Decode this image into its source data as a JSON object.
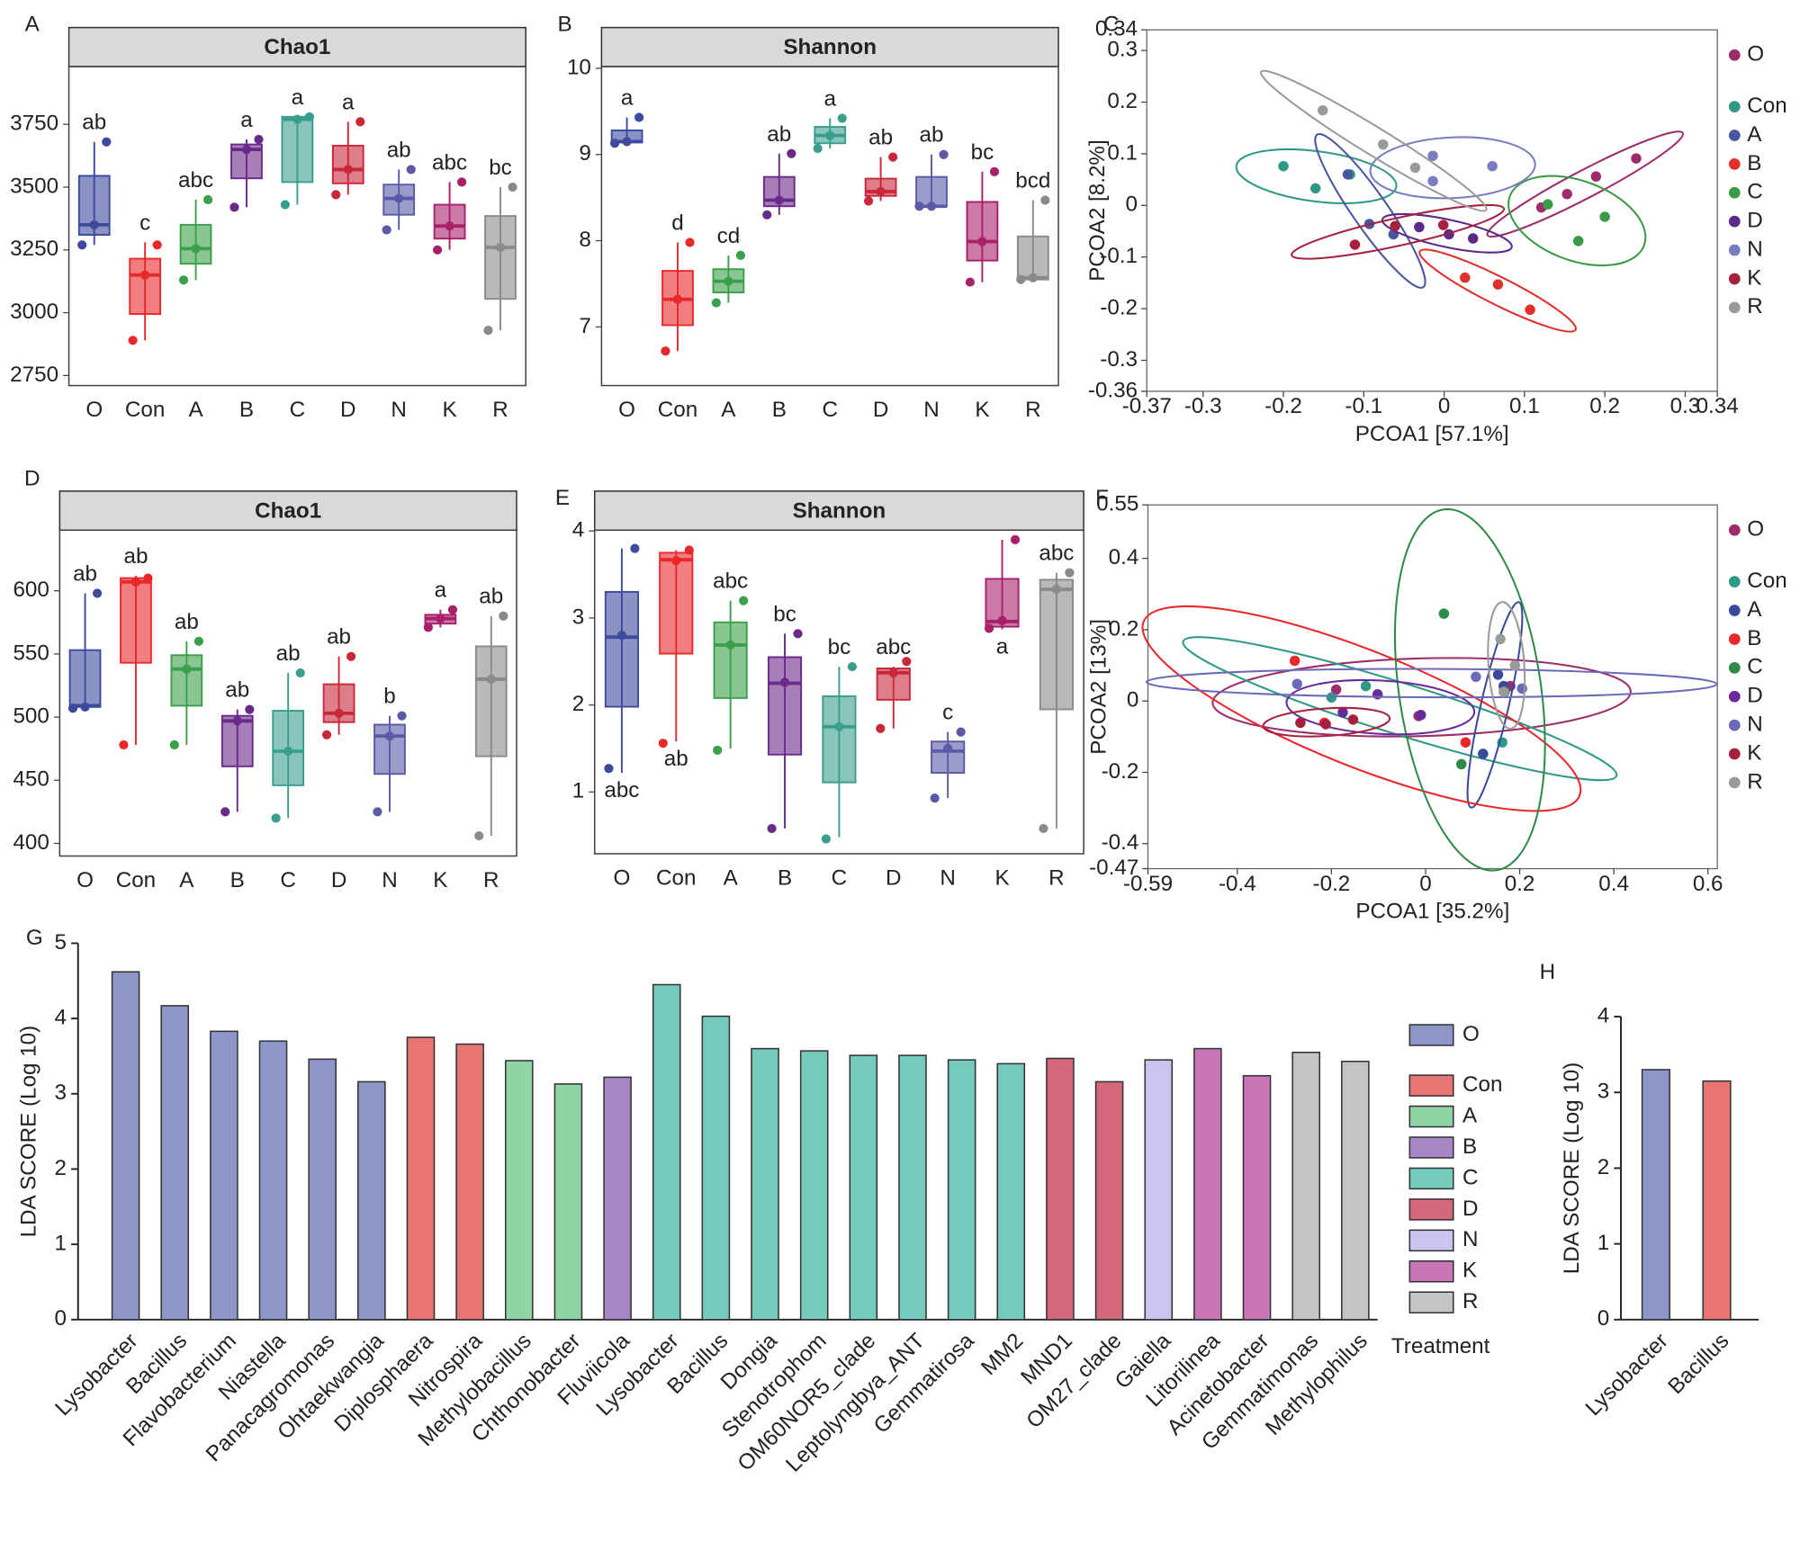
{
  "chart_data": [
    {
      "type": "box",
      "panel": "A",
      "title": "Chao1",
      "categories": [
        "O",
        "Con",
        "A",
        "B",
        "C",
        "D",
        "N",
        "K",
        "R"
      ],
      "colors": [
        "#3d4a9e",
        "#e8282b",
        "#3aa04a",
        "#6a2a8a",
        "#3a9e8e",
        "#c8283a",
        "#5a5aa8",
        "#a8206a",
        "#8a8a8a"
      ],
      "ylim": [
        2710,
        3980
      ],
      "yticks": [
        2750,
        3000,
        3250,
        3500,
        3750
      ],
      "boxes": [
        {
          "min": 3270,
          "q1": 3310,
          "median": 3350,
          "q3": 3545,
          "max": 3680,
          "points": [
            3270,
            3350,
            3680
          ],
          "label": "ab"
        },
        {
          "min": 2890,
          "q1": 2995,
          "median": 3150,
          "q3": 3215,
          "max": 3280,
          "points": [
            2890,
            3150,
            3270
          ],
          "label": "c"
        },
        {
          "min": 3130,
          "q1": 3195,
          "median": 3255,
          "q3": 3350,
          "max": 3450,
          "points": [
            3130,
            3255,
            3450
          ],
          "label": "abc"
        },
        {
          "min": 3420,
          "q1": 3535,
          "median": 3650,
          "q3": 3670,
          "max": 3690,
          "points": [
            3420,
            3650,
            3690
          ],
          "label": "a"
        },
        {
          "min": 3430,
          "q1": 3520,
          "median": 3770,
          "q3": 3780,
          "max": 3780,
          "points": [
            3430,
            3770,
            3780
          ],
          "label": "a"
        },
        {
          "min": 3470,
          "q1": 3515,
          "median": 3570,
          "q3": 3665,
          "max": 3760,
          "points": [
            3470,
            3570,
            3760
          ],
          "label": "a"
        },
        {
          "min": 3330,
          "q1": 3390,
          "median": 3455,
          "q3": 3510,
          "max": 3570,
          "points": [
            3330,
            3455,
            3570
          ],
          "label": "ab"
        },
        {
          "min": 3250,
          "q1": 3295,
          "median": 3345,
          "q3": 3430,
          "max": 3520,
          "points": [
            3250,
            3345,
            3520
          ],
          "label": "abc"
        },
        {
          "min": 2930,
          "q1": 3055,
          "median": 3260,
          "q3": 3385,
          "max": 3500,
          "points": [
            2930,
            3260,
            3500
          ],
          "label": "bc"
        }
      ]
    },
    {
      "type": "box",
      "panel": "B",
      "title": "Shannon",
      "categories": [
        "O",
        "Con",
        "A",
        "B",
        "C",
        "D",
        "N",
        "K",
        "R"
      ],
      "colors": [
        "#3d4a9e",
        "#e8282b",
        "#3aa04a",
        "#6a2a8a",
        "#3a9e8e",
        "#c8283a",
        "#5a5aa8",
        "#a8206a",
        "#8a8a8a"
      ],
      "ylim": [
        6.32,
        10.02
      ],
      "yticks": [
        7,
        8,
        9,
        10
      ],
      "boxes": [
        {
          "min": 9.13,
          "q1": 9.14,
          "median": 9.15,
          "q3": 9.28,
          "max": 9.43,
          "points": [
            9.13,
            9.15,
            9.43
          ],
          "label": "a"
        },
        {
          "min": 6.72,
          "q1": 7.02,
          "median": 7.32,
          "q3": 7.65,
          "max": 7.98,
          "points": [
            6.72,
            7.32,
            7.98
          ],
          "label": "d"
        },
        {
          "min": 7.28,
          "q1": 7.4,
          "median": 7.53,
          "q3": 7.67,
          "max": 7.83,
          "points": [
            7.28,
            7.53,
            7.83
          ],
          "label": "cd"
        },
        {
          "min": 8.3,
          "q1": 8.4,
          "median": 8.47,
          "q3": 8.74,
          "max": 9.01,
          "points": [
            8.3,
            8.47,
            9.01
          ],
          "label": "ab"
        },
        {
          "min": 9.07,
          "q1": 9.13,
          "median": 9.22,
          "q3": 9.32,
          "max": 9.42,
          "points": [
            9.07,
            9.22,
            9.42
          ],
          "label": "a"
        },
        {
          "min": 8.46,
          "q1": 8.52,
          "median": 8.57,
          "q3": 8.72,
          "max": 8.97,
          "points": [
            8.46,
            8.57,
            8.97
          ],
          "label": "ab"
        },
        {
          "min": 8.4,
          "q1": 8.4,
          "median": 8.4,
          "q3": 8.74,
          "max": 9.0,
          "points": [
            8.4,
            8.4,
            9.0
          ],
          "label": "ab"
        },
        {
          "min": 7.52,
          "q1": 7.77,
          "median": 7.99,
          "q3": 8.45,
          "max": 8.8,
          "points": [
            7.52,
            7.99,
            8.8
          ],
          "label": "bc"
        },
        {
          "min": 7.55,
          "q1": 7.55,
          "median": 7.57,
          "q3": 8.05,
          "max": 8.47,
          "points": [
            7.55,
            7.57,
            8.47
          ],
          "label": "bcd"
        }
      ]
    },
    {
      "type": "scatter",
      "panel": "C",
      "x_label": "PCOA1 [57.1%]",
      "y_label": "PCOA2 [8.2%]",
      "xlim": [
        -0.37,
        0.34
      ],
      "xticks": [
        -0.37,
        -0.3,
        -0.2,
        -0.1,
        0,
        0.1,
        0.2,
        0.3,
        0.34
      ],
      "ylim": [
        -0.36,
        0.34
      ],
      "yticks": [
        -0.36,
        -0.3,
        -0.2,
        -0.1,
        0,
        0.1,
        0.2,
        0.3,
        0.34
      ],
      "series": [
        {
          "name": "O",
          "color": "#9c2c6c",
          "x": [
            0.121,
            0.153,
            0.189,
            0.239
          ],
          "y": [
            -0.004,
            0.022,
            0.056,
            0.091
          ]
        },
        {
          "name": "Con",
          "color": "#2e9a86",
          "x": [
            -0.2,
            -0.16,
            -0.117
          ],
          "y": [
            0.076,
            0.033,
            0.06
          ]
        },
        {
          "name": "A",
          "color": "#4a56a0",
          "x": [
            -0.093,
            -0.063,
            -0.12
          ],
          "y": [
            -0.036,
            -0.056,
            0.06
          ]
        },
        {
          "name": "B",
          "color": "#e0302c",
          "x": [
            0.026,
            0.067,
            0.107
          ],
          "y": [
            -0.14,
            -0.153,
            -0.202
          ]
        },
        {
          "name": "C",
          "color": "#3a9a48",
          "x": [
            0.167,
            0.2,
            0.129
          ],
          "y": [
            -0.069,
            -0.022,
            0.002
          ]
        },
        {
          "name": "D",
          "color": "#5a2a86",
          "x": [
            0.006,
            0.036,
            -0.031
          ],
          "y": [
            -0.056,
            -0.064,
            -0.042
          ]
        },
        {
          "name": "N",
          "color": "#7a7cc0",
          "x": [
            -0.014,
            -0.014,
            0.06
          ],
          "y": [
            0.096,
            0.047,
            0.076
          ]
        },
        {
          "name": "K",
          "color": "#a82040",
          "x": [
            -0.111,
            -0.061,
            -0.001
          ],
          "y": [
            -0.076,
            -0.04,
            -0.038
          ]
        },
        {
          "name": "R",
          "color": "#9a9a9a",
          "x": [
            -0.151,
            -0.076,
            -0.036
          ],
          "y": [
            0.184,
            0.118,
            0.073
          ]
        }
      ]
    },
    {
      "type": "box",
      "panel": "D",
      "title": "Chao1",
      "categories": [
        "O",
        "Con",
        "A",
        "B",
        "C",
        "D",
        "N",
        "K",
        "R"
      ],
      "colors": [
        "#3d4a9e",
        "#e8282b",
        "#3aa04a",
        "#6a2a8a",
        "#3a9e8e",
        "#c8283a",
        "#5a5aa8",
        "#a8206a",
        "#8a8a8a"
      ],
      "ylim": [
        390,
        648
      ],
      "yticks": [
        400,
        450,
        500,
        550,
        600
      ],
      "boxes": [
        {
          "min": 507,
          "q1": 508,
          "median": 509,
          "q3": 553,
          "max": 598,
          "points": [
            507,
            508,
            598
          ],
          "label": "ab"
        },
        {
          "min": 478,
          "q1": 543,
          "median": 607,
          "q3": 610,
          "max": 612,
          "points": [
            478,
            607,
            610
          ],
          "label": "ab"
        },
        {
          "min": 478,
          "q1": 509,
          "median": 538,
          "q3": 549,
          "max": 560,
          "points": [
            478,
            538,
            560
          ],
          "label": "ab"
        },
        {
          "min": 425,
          "q1": 461,
          "median": 497,
          "q3": 501,
          "max": 506,
          "points": [
            425,
            497,
            506
          ],
          "label": "ab"
        },
        {
          "min": 420,
          "q1": 446,
          "median": 473,
          "q3": 505,
          "max": 535,
          "points": [
            420,
            473,
            535
          ],
          "label": "ab"
        },
        {
          "min": 486,
          "q1": 496,
          "median": 503,
          "q3": 526,
          "max": 548,
          "points": [
            486,
            503,
            548
          ],
          "label": "ab"
        },
        {
          "min": 425,
          "q1": 455,
          "median": 485,
          "q3": 494,
          "max": 501,
          "points": [
            425,
            485,
            501
          ],
          "label": "b"
        },
        {
          "min": 571,
          "q1": 574,
          "median": 578,
          "q3": 581,
          "max": 585,
          "points": [
            571,
            578,
            585
          ],
          "label": "a"
        },
        {
          "min": 406,
          "q1": 469,
          "median": 530,
          "q3": 556,
          "max": 580,
          "points": [
            406,
            530,
            580
          ],
          "label": "ab"
        }
      ]
    },
    {
      "type": "box",
      "panel": "E",
      "title": "Shannon",
      "categories": [
        "O",
        "Con",
        "A",
        "B",
        "C",
        "D",
        "N",
        "K",
        "R"
      ],
      "colors": [
        "#3d4a9e",
        "#e8282b",
        "#3aa04a",
        "#6a2a8a",
        "#3a9e8e",
        "#c8283a",
        "#5a5aa8",
        "#a8206a",
        "#8a8a8a"
      ],
      "ylim": [
        0.29,
        4.01
      ],
      "yticks": [
        1,
        2,
        3,
        4
      ],
      "boxes": [
        {
          "min": 1.22,
          "q1": 1.98,
          "median": 2.78,
          "q3": 3.3,
          "max": 3.8,
          "points": [
            1.27,
            2.8,
            3.8
          ],
          "label": "abc",
          "label_below": true
        },
        {
          "min": 1.58,
          "q1": 2.59,
          "median": 3.67,
          "q3": 3.75,
          "max": 3.78,
          "points": [
            1.56,
            3.66,
            3.78
          ],
          "label": "ab",
          "label_below": true
        },
        {
          "min": 1.5,
          "q1": 2.08,
          "median": 2.69,
          "q3": 2.95,
          "max": 3.2,
          "points": [
            1.48,
            2.69,
            3.2
          ],
          "label": "abc"
        },
        {
          "min": 0.58,
          "q1": 1.43,
          "median": 2.25,
          "q3": 2.55,
          "max": 2.82,
          "points": [
            0.58,
            2.26,
            2.82
          ],
          "label": "bc"
        },
        {
          "min": 0.48,
          "q1": 1.11,
          "median": 1.75,
          "q3": 2.1,
          "max": 2.44,
          "points": [
            0.46,
            1.75,
            2.44
          ],
          "label": "bc"
        },
        {
          "min": 1.73,
          "q1": 2.06,
          "median": 2.37,
          "q3": 2.42,
          "max": 2.44,
          "points": [
            1.73,
            2.37,
            2.5
          ],
          "label": "abc"
        },
        {
          "min": 0.93,
          "q1": 1.22,
          "median": 1.47,
          "q3": 1.58,
          "max": 1.69,
          "points": [
            0.93,
            1.5,
            1.69
          ],
          "label": "c"
        },
        {
          "min": 2.87,
          "q1": 2.9,
          "median": 2.96,
          "q3": 3.45,
          "max": 3.9,
          "points": [
            2.88,
            2.97,
            3.9
          ],
          "label": "a",
          "label_below": true
        },
        {
          "min": 0.58,
          "q1": 1.95,
          "median": 3.33,
          "q3": 3.44,
          "max": 3.52,
          "points": [
            0.58,
            3.33,
            3.52
          ],
          "label": "abc"
        }
      ]
    },
    {
      "type": "scatter",
      "panel": "F",
      "x_label": "PCOA1 [35.2%]",
      "y_label": "PCOA2 [13%]",
      "xlim": [
        -0.59,
        0.62
      ],
      "xticks": [
        -0.59,
        -0.4,
        -0.2,
        0,
        0.2,
        0.4,
        0.6
      ],
      "ylim": [
        -0.47,
        0.55
      ],
      "yticks": [
        -0.47,
        -0.4,
        -0.2,
        0,
        0.2,
        0.4,
        0.55
      ],
      "series": [
        {
          "name": "O",
          "color": "#9c2c6c",
          "x": [
            -0.19,
            -0.015,
            0.18
          ],
          "y": [
            0.032,
            -0.042,
            0.042
          ]
        },
        {
          "name": "Con",
          "color": "#2e9a86",
          "x": [
            0.163,
            -0.127,
            -0.2
          ],
          "y": [
            -0.116,
            0.042,
            0.01
          ]
        },
        {
          "name": "A",
          "color": "#3a4a9a",
          "x": [
            0.122,
            0.154,
            0.166
          ],
          "y": [
            -0.148,
            0.074,
            0.042
          ]
        },
        {
          "name": "B",
          "color": "#e8282b",
          "x": [
            -0.278,
            -0.215,
            0.085
          ],
          "y": [
            0.113,
            -0.061,
            -0.116
          ]
        },
        {
          "name": "C",
          "color": "#2e8a48",
          "x": [
            0.039,
            0.076,
            0.168
          ],
          "y": [
            0.245,
            -0.177,
            0.026
          ]
        },
        {
          "name": "D",
          "color": "#6a2a9a",
          "x": [
            -0.176,
            -0.102,
            -0.01
          ],
          "y": [
            -0.032,
            0.019,
            -0.039
          ]
        },
        {
          "name": "N",
          "color": "#6a6ab8",
          "x": [
            -0.273,
            0.107,
            0.205
          ],
          "y": [
            0.048,
            0.068,
            0.035
          ]
        },
        {
          "name": "K",
          "color": "#a82040",
          "x": [
            -0.266,
            -0.212,
            -0.154
          ],
          "y": [
            -0.061,
            -0.065,
            -0.052
          ]
        },
        {
          "name": "R",
          "color": "#9a9a9a",
          "x": [
            0.159,
            0.166,
            0.19
          ],
          "y": [
            0.174,
            0.026,
            0.1
          ]
        }
      ]
    },
    {
      "type": "bar",
      "panel": "G",
      "y_label": "LDA SCORE (Log 10)",
      "ylim": [
        0,
        5
      ],
      "yticks": [
        0,
        1,
        2,
        3,
        4,
        5
      ],
      "categories": [
        "Lysobacter",
        "Bacillus",
        "Flavobacterium",
        "Niastella",
        "Panacagromonas",
        "Ohtaekwangia",
        "Diplosphaera",
        "Nitrospira",
        "Methylobacillus",
        "Chthonobacter",
        "Fluviicola",
        "Lysobacter",
        "Bacillus",
        "Dongia",
        "Stenotrophom",
        "OM60NOR5_clade",
        "Leptolyngbya_ANT",
        "Gemmatirosa",
        "MM2",
        "MND1",
        "OM27_clade",
        "Gaiella",
        "Litorilinea",
        "Acinetobacter",
        "Gemmatimonas",
        "Methylophilus"
      ],
      "values": [
        4.62,
        4.17,
        3.83,
        3.7,
        3.46,
        3.16,
        3.75,
        3.66,
        3.44,
        3.13,
        3.22,
        4.45,
        4.03,
        3.6,
        3.57,
        3.51,
        3.51,
        3.45,
        3.4,
        3.47,
        3.16,
        3.45,
        3.6,
        3.24,
        3.55,
        3.43
      ],
      "colors": [
        "#8e95c8",
        "#8e95c8",
        "#8e95c8",
        "#8e95c8",
        "#8e95c8",
        "#8e95c8",
        "#e87474",
        "#e87474",
        "#8ed4a4",
        "#8ed4a4",
        "#a487c4",
        "#74cabb",
        "#74cabb",
        "#74cabb",
        "#74cabb",
        "#74cabb",
        "#74cabb",
        "#74cabb",
        "#74cabb",
        "#d4677a",
        "#d4677a",
        "#cbc4f0",
        "#c876b8",
        "#c876b8",
        "#c4c4c4",
        "#c4c4c4"
      ],
      "legend_title": "Treatment",
      "legend": [
        {
          "name": "O",
          "color": "#8e95c8"
        },
        {
          "name": "Con",
          "color": "#e87474"
        },
        {
          "name": "A",
          "color": "#8ed4a4"
        },
        {
          "name": "B",
          "color": "#a487c4"
        },
        {
          "name": "C",
          "color": "#74cabb"
        },
        {
          "name": "D",
          "color": "#d4677a"
        },
        {
          "name": "N",
          "color": "#cbc4f0"
        },
        {
          "name": "K",
          "color": "#c876b8"
        },
        {
          "name": "R",
          "color": "#c4c4c4"
        }
      ]
    },
    {
      "type": "bar",
      "panel": "H",
      "y_label": "LDA SCORE (Log 10)",
      "ylim": [
        0,
        4
      ],
      "yticks": [
        0,
        1,
        2,
        3,
        4
      ],
      "categories": [
        "Lysobacter",
        "Bacillus"
      ],
      "values": [
        3.3,
        3.15
      ],
      "colors": [
        "#8e95c8",
        "#e87474"
      ]
    }
  ]
}
